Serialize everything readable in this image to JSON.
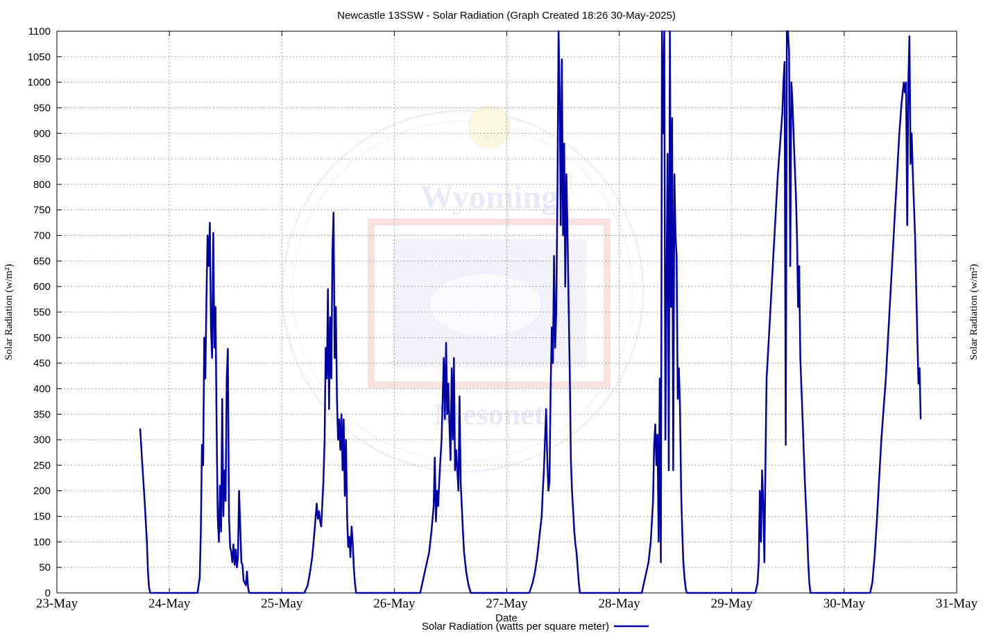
{
  "chart_data": {
    "type": "line",
    "title": "Newcastle 13SSW - Solar Radiation (Graph Created 18:26 30-May-2025)",
    "xlabel": "Date",
    "ylabel_left": "Solar Radiation (w/m²)",
    "ylabel_right": "Solar Radiation (w/m²)",
    "ylim": [
      0,
      1100
    ],
    "y_ticks": [
      "0",
      "50",
      "100",
      "150",
      "200",
      "250",
      "300",
      "350",
      "400",
      "450",
      "500",
      "550",
      "600",
      "650",
      "700",
      "750",
      "800",
      "850",
      "900",
      "950",
      "1000",
      "1050",
      "1100"
    ],
    "x_ticks": [
      "23-May",
      "24-May",
      "25-May",
      "26-May",
      "27-May",
      "28-May",
      "29-May",
      "30-May",
      "31-May"
    ],
    "grid": true,
    "legend_position": "bottom-center",
    "series": [
      {
        "name": "Solar Radiation (watts per square meter)",
        "color": "#0000a8",
        "points": [
          [
            0.74,
            322
          ],
          [
            0.76,
            250
          ],
          [
            0.78,
            180
          ],
          [
            0.8,
            100
          ],
          [
            0.81,
            40
          ],
          [
            0.82,
            10
          ],
          [
            0.83,
            0
          ],
          [
            1.25,
            0
          ],
          [
            1.27,
            30
          ],
          [
            1.28,
            120
          ],
          [
            1.29,
            290
          ],
          [
            1.3,
            250
          ],
          [
            1.31,
            500
          ],
          [
            1.32,
            420
          ],
          [
            1.33,
            580
          ],
          [
            1.34,
            700
          ],
          [
            1.35,
            640
          ],
          [
            1.36,
            725
          ],
          [
            1.37,
            520
          ],
          [
            1.38,
            460
          ],
          [
            1.39,
            705
          ],
          [
            1.4,
            480
          ],
          [
            1.41,
            560
          ],
          [
            1.42,
            330
          ],
          [
            1.43,
            150
          ],
          [
            1.44,
            100
          ],
          [
            1.45,
            210
          ],
          [
            1.46,
            120
          ],
          [
            1.47,
            380
          ],
          [
            1.48,
            150
          ],
          [
            1.49,
            240
          ],
          [
            1.5,
            180
          ],
          [
            1.51,
            420
          ],
          [
            1.52,
            478
          ],
          [
            1.53,
            150
          ],
          [
            1.54,
            90
          ],
          [
            1.55,
            80
          ],
          [
            1.56,
            60
          ],
          [
            1.57,
            95
          ],
          [
            1.58,
            55
          ],
          [
            1.59,
            85
          ],
          [
            1.6,
            50
          ],
          [
            1.61,
            70
          ],
          [
            1.62,
            200
          ],
          [
            1.63,
            130
          ],
          [
            1.64,
            60
          ],
          [
            1.65,
            55
          ],
          [
            1.66,
            25
          ],
          [
            1.68,
            15
          ],
          [
            1.69,
            42
          ],
          [
            1.7,
            10
          ],
          [
            1.71,
            0
          ],
          [
            2.2,
            0
          ],
          [
            2.23,
            15
          ],
          [
            2.25,
            40
          ],
          [
            2.27,
            70
          ],
          [
            2.29,
            120
          ],
          [
            2.31,
            175
          ],
          [
            2.32,
            145
          ],
          [
            2.33,
            160
          ],
          [
            2.34,
            140
          ],
          [
            2.35,
            130
          ],
          [
            2.37,
            220
          ],
          [
            2.38,
            300
          ],
          [
            2.39,
            480
          ],
          [
            2.4,
            420
          ],
          [
            2.41,
            595
          ],
          [
            2.42,
            360
          ],
          [
            2.43,
            540
          ],
          [
            2.44,
            420
          ],
          [
            2.45,
            670
          ],
          [
            2.46,
            745
          ],
          [
            2.47,
            460
          ],
          [
            2.48,
            560
          ],
          [
            2.49,
            380
          ],
          [
            2.5,
            300
          ],
          [
            2.51,
            340
          ],
          [
            2.52,
            280
          ],
          [
            2.53,
            350
          ],
          [
            2.54,
            240
          ],
          [
            2.55,
            340
          ],
          [
            2.56,
            190
          ],
          [
            2.57,
            300
          ],
          [
            2.58,
            150
          ],
          [
            2.59,
            90
          ],
          [
            2.6,
            110
          ],
          [
            2.61,
            70
          ],
          [
            2.62,
            130
          ],
          [
            2.63,
            100
          ],
          [
            2.64,
            50
          ],
          [
            2.65,
            20
          ],
          [
            2.66,
            0
          ],
          [
            3.23,
            0
          ],
          [
            3.25,
            20
          ],
          [
            3.27,
            40
          ],
          [
            3.29,
            60
          ],
          [
            3.31,
            80
          ],
          [
            3.33,
            120
          ],
          [
            3.35,
            170
          ],
          [
            3.36,
            265
          ],
          [
            3.37,
            140
          ],
          [
            3.38,
            200
          ],
          [
            3.39,
            170
          ],
          [
            3.4,
            220
          ],
          [
            3.41,
            260
          ],
          [
            3.42,
            300
          ],
          [
            3.43,
            380
          ],
          [
            3.44,
            460
          ],
          [
            3.45,
            340
          ],
          [
            3.46,
            490
          ],
          [
            3.47,
            350
          ],
          [
            3.48,
            410
          ],
          [
            3.49,
            330
          ],
          [
            3.5,
            260
          ],
          [
            3.51,
            440
          ],
          [
            3.52,
            300
          ],
          [
            3.53,
            460
          ],
          [
            3.54,
            240
          ],
          [
            3.55,
            280
          ],
          [
            3.56,
            240
          ],
          [
            3.57,
            200
          ],
          [
            3.58,
            385
          ],
          [
            3.59,
            220
          ],
          [
            3.6,
            170
          ],
          [
            3.61,
            120
          ],
          [
            3.62,
            80
          ],
          [
            3.64,
            40
          ],
          [
            3.66,
            15
          ],
          [
            3.68,
            0
          ],
          [
            4.2,
            0
          ],
          [
            4.23,
            20
          ],
          [
            4.25,
            40
          ],
          [
            4.27,
            70
          ],
          [
            4.29,
            110
          ],
          [
            4.31,
            150
          ],
          [
            4.32,
            200
          ],
          [
            4.33,
            240
          ],
          [
            4.34,
            300
          ],
          [
            4.35,
            360
          ],
          [
            4.36,
            260
          ],
          [
            4.37,
            200
          ],
          [
            4.38,
            220
          ],
          [
            4.39,
            400
          ],
          [
            4.4,
            520
          ],
          [
            4.41,
            450
          ],
          [
            4.42,
            660
          ],
          [
            4.43,
            480
          ],
          [
            4.44,
            550
          ],
          [
            4.45,
            780
          ],
          [
            4.46,
            1100
          ],
          [
            4.47,
            980
          ],
          [
            4.48,
            720
          ],
          [
            4.49,
            1045
          ],
          [
            4.5,
            700
          ],
          [
            4.51,
            880
          ],
          [
            4.52,
            600
          ],
          [
            4.53,
            820
          ],
          [
            4.54,
            710
          ],
          [
            4.55,
            560
          ],
          [
            4.56,
            430
          ],
          [
            4.57,
            260
          ],
          [
            4.58,
            200
          ],
          [
            4.59,
            160
          ],
          [
            4.6,
            120
          ],
          [
            4.61,
            95
          ],
          [
            4.62,
            80
          ],
          [
            4.63,
            50
          ],
          [
            4.64,
            20
          ],
          [
            4.65,
            0
          ],
          [
            5.2,
            0
          ],
          [
            5.22,
            20
          ],
          [
            5.24,
            40
          ],
          [
            5.26,
            60
          ],
          [
            5.28,
            100
          ],
          [
            5.3,
            180
          ],
          [
            5.31,
            290
          ],
          [
            5.32,
            330
          ],
          [
            5.33,
            250
          ],
          [
            5.34,
            310
          ],
          [
            5.35,
            100
          ],
          [
            5.36,
            420
          ],
          [
            5.37,
            60
          ],
          [
            5.38,
            1100
          ],
          [
            5.39,
            900
          ],
          [
            5.4,
            1100
          ],
          [
            5.41,
            300
          ],
          [
            5.42,
            600
          ],
          [
            5.43,
            860
          ],
          [
            5.44,
            240
          ],
          [
            5.45,
            1100
          ],
          [
            5.46,
            560
          ],
          [
            5.47,
            930
          ],
          [
            5.48,
            240
          ],
          [
            5.49,
            820
          ],
          [
            5.5,
            700
          ],
          [
            5.51,
            660
          ],
          [
            5.52,
            380
          ],
          [
            5.53,
            440
          ],
          [
            5.54,
            360
          ],
          [
            5.55,
            200
          ],
          [
            5.56,
            120
          ],
          [
            5.57,
            60
          ],
          [
            5.58,
            30
          ],
          [
            5.59,
            10
          ],
          [
            5.6,
            0
          ],
          [
            6.21,
            0
          ],
          [
            6.23,
            20
          ],
          [
            6.24,
            60
          ],
          [
            6.25,
            200
          ],
          [
            6.26,
            100
          ],
          [
            6.27,
            240
          ],
          [
            6.28,
            180
          ],
          [
            6.29,
            60
          ],
          [
            6.3,
            260
          ],
          [
            6.31,
            420
          ],
          [
            6.33,
            500
          ],
          [
            6.35,
            580
          ],
          [
            6.37,
            660
          ],
          [
            6.39,
            740
          ],
          [
            6.41,
            820
          ],
          [
            6.43,
            880
          ],
          [
            6.45,
            940
          ],
          [
            6.46,
            1000
          ],
          [
            6.47,
            1040
          ],
          [
            6.48,
            290
          ],
          [
            6.49,
            1100
          ],
          [
            6.5,
            1100
          ],
          [
            6.51,
            1060
          ],
          [
            6.52,
            640
          ],
          [
            6.53,
            1000
          ],
          [
            6.54,
            960
          ],
          [
            6.55,
            900
          ],
          [
            6.56,
            840
          ],
          [
            6.57,
            780
          ],
          [
            6.58,
            700
          ],
          [
            6.59,
            560
          ],
          [
            6.6,
            640
          ],
          [
            6.61,
            460
          ],
          [
            6.63,
            340
          ],
          [
            6.65,
            220
          ],
          [
            6.67,
            120
          ],
          [
            6.68,
            60
          ],
          [
            6.69,
            20
          ],
          [
            6.7,
            0
          ],
          [
            7.23,
            0
          ],
          [
            7.25,
            20
          ],
          [
            7.27,
            70
          ],
          [
            7.29,
            140
          ],
          [
            7.31,
            220
          ],
          [
            7.33,
            300
          ],
          [
            7.35,
            360
          ],
          [
            7.37,
            420
          ],
          [
            7.39,
            500
          ],
          [
            7.41,
            580
          ],
          [
            7.43,
            660
          ],
          [
            7.45,
            740
          ],
          [
            7.47,
            820
          ],
          [
            7.49,
            900
          ],
          [
            7.51,
            960
          ],
          [
            7.53,
            1000
          ],
          [
            7.54,
            980
          ],
          [
            7.55,
            1000
          ],
          [
            7.56,
            720
          ],
          [
            7.57,
            1000
          ],
          [
            7.58,
            1090
          ],
          [
            7.59,
            840
          ],
          [
            7.6,
            900
          ],
          [
            7.61,
            820
          ],
          [
            7.62,
            760
          ],
          [
            7.63,
            700
          ],
          [
            7.64,
            600
          ],
          [
            7.65,
            500
          ],
          [
            7.66,
            410
          ],
          [
            7.67,
            440
          ],
          [
            7.68,
            340
          ]
        ]
      }
    ]
  }
}
